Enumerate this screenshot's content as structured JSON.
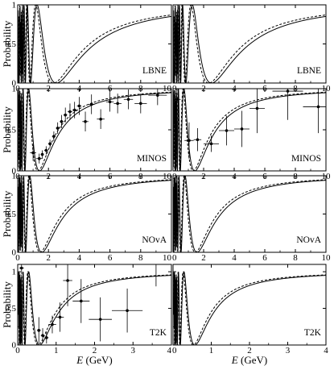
{
  "figure": {
    "ylabel": "Probability",
    "xlabel_italic": "E",
    "xlabel_unit": " (GeV)"
  },
  "chart_data": [
    {
      "type": "line",
      "experiment": "LBNE",
      "column": 0,
      "row": 0,
      "xlim": [
        0,
        10
      ],
      "ylim": [
        0,
        1.0
      ],
      "xticks": [
        0,
        2,
        4,
        6,
        8,
        10
      ],
      "yticks": [
        0,
        0.5,
        1
      ],
      "curve": {
        "L_km": 1300
      },
      "data_points": []
    },
    {
      "type": "line",
      "experiment": "LBNE",
      "column": 1,
      "row": 0,
      "xlim": [
        0,
        10
      ],
      "ylim": [
        0,
        1.0
      ],
      "xticks": [
        0,
        2,
        4,
        6,
        8,
        10
      ],
      "yticks": [
        0,
        0.5,
        1
      ],
      "curve": {
        "L_km": 1300
      },
      "data_points": []
    },
    {
      "type": "line",
      "experiment": "MINOS",
      "column": 0,
      "row": 1,
      "xlim": [
        0,
        10
      ],
      "ylim": [
        0,
        1.0
      ],
      "xticks": [
        0,
        2,
        4,
        6,
        8,
        10
      ],
      "yticks": [
        0,
        0.5,
        1
      ],
      "curve": {
        "L_km": 735
      },
      "data_points": [
        {
          "x": 1.0,
          "y": 0.22,
          "xerr": 0.2,
          "yerr": 0.1
        },
        {
          "x": 1.4,
          "y": 0.15,
          "xerr": 0.2,
          "yerr": 0.06
        },
        {
          "x": 1.6,
          "y": 0.2,
          "xerr": 0.1,
          "yerr": 0.05
        },
        {
          "x": 1.85,
          "y": 0.25,
          "xerr": 0.12,
          "yerr": 0.05
        },
        {
          "x": 2.1,
          "y": 0.33,
          "xerr": 0.12,
          "yerr": 0.05
        },
        {
          "x": 2.35,
          "y": 0.42,
          "xerr": 0.12,
          "yerr": 0.06
        },
        {
          "x": 2.6,
          "y": 0.52,
          "xerr": 0.12,
          "yerr": 0.07
        },
        {
          "x": 2.85,
          "y": 0.6,
          "xerr": 0.12,
          "yerr": 0.08
        },
        {
          "x": 3.1,
          "y": 0.68,
          "xerr": 0.12,
          "yerr": 0.09
        },
        {
          "x": 3.4,
          "y": 0.72,
          "xerr": 0.15,
          "yerr": 0.1
        },
        {
          "x": 3.7,
          "y": 0.74,
          "xerr": 0.15,
          "yerr": 0.1
        },
        {
          "x": 4.0,
          "y": 0.79,
          "xerr": 0.15,
          "yerr": 0.11
        },
        {
          "x": 4.4,
          "y": 0.6,
          "xerr": 0.2,
          "yerr": 0.12
        },
        {
          "x": 4.8,
          "y": 0.81,
          "xerr": 0.2,
          "yerr": 0.12
        },
        {
          "x": 5.4,
          "y": 0.63,
          "xerr": 0.25,
          "yerr": 0.12
        },
        {
          "x": 6.0,
          "y": 0.84,
          "xerr": 0.25,
          "yerr": 0.12
        },
        {
          "x": 6.5,
          "y": 0.82,
          "xerr": 0.25,
          "yerr": 0.12
        },
        {
          "x": 7.2,
          "y": 0.87,
          "xerr": 0.3,
          "yerr": 0.12
        },
        {
          "x": 8.0,
          "y": 0.82,
          "xerr": 0.4,
          "yerr": 0.12
        },
        {
          "x": 9.1,
          "y": 0.92,
          "xerr": 0.6,
          "yerr": 0.12
        }
      ]
    },
    {
      "type": "line",
      "experiment": "MINOS",
      "column": 1,
      "row": 1,
      "xlim": [
        0,
        10
      ],
      "ylim": [
        0,
        1.0
      ],
      "xticks": [
        0,
        2,
        4,
        6,
        8,
        10
      ],
      "yticks": [
        0,
        0.5,
        1
      ],
      "curve": {
        "L_km": 735
      },
      "data_points": [
        {
          "x": 0.25,
          "y": 0.87,
          "xerr": 0.25,
          "yerr": 0.18
        },
        {
          "x": 1.05,
          "y": 0.37,
          "xerr": 0.3,
          "yerr": 0.22
        },
        {
          "x": 1.6,
          "y": 0.38,
          "xerr": 0.25,
          "yerr": 0.14
        },
        {
          "x": 2.5,
          "y": 0.33,
          "xerr": 0.5,
          "yerr": 0.1
        },
        {
          "x": 3.5,
          "y": 0.49,
          "xerr": 0.5,
          "yerr": 0.18
        },
        {
          "x": 4.5,
          "y": 0.51,
          "xerr": 0.5,
          "yerr": 0.22
        },
        {
          "x": 5.5,
          "y": 0.76,
          "xerr": 0.5,
          "yerr": 0.3
        },
        {
          "x": 7.5,
          "y": 0.97,
          "xerr": 1.0,
          "yerr": 0.35
        },
        {
          "x": 9.5,
          "y": 0.78,
          "xerr": 1.0,
          "yerr": 0.32
        }
      ]
    },
    {
      "type": "line",
      "experiment": "NOvA",
      "column": 0,
      "row": 2,
      "xlim": [
        0,
        10
      ],
      "ylim": [
        0,
        1.0
      ],
      "xticks": [
        0,
        2,
        4,
        6,
        8,
        10
      ],
      "yticks": [
        0,
        0.5,
        1
      ],
      "curve": {
        "L_km": 810
      },
      "data_points": []
    },
    {
      "type": "line",
      "experiment": "NOvA",
      "column": 1,
      "row": 2,
      "xlim": [
        0,
        10
      ],
      "ylim": [
        0,
        1.0
      ],
      "xticks": [
        0,
        2,
        4,
        6,
        8,
        10
      ],
      "yticks": [
        0,
        0.5,
        1
      ],
      "curve": {
        "L_km": 810
      },
      "data_points": []
    },
    {
      "type": "line",
      "experiment": "T2K",
      "column": 0,
      "row": 3,
      "xlim": [
        0,
        4
      ],
      "ylim": [
        0,
        1.1
      ],
      "xticks": [
        0,
        1,
        2,
        3,
        4
      ],
      "yticks": [
        0,
        0.5,
        1
      ],
      "curve": {
        "L_km": 295
      },
      "data_points": [
        {
          "x": 0.1,
          "y": 1.05,
          "xerr": 0.06,
          "yerr": 0.08
        },
        {
          "x": 0.55,
          "y": 0.2,
          "xerr": 0.05,
          "yerr": 0.18
        },
        {
          "x": 0.65,
          "y": 0.13,
          "xerr": 0.05,
          "yerr": 0.1
        },
        {
          "x": 0.75,
          "y": 0.1,
          "xerr": 0.05,
          "yerr": 0.08
        },
        {
          "x": 0.9,
          "y": 0.28,
          "xerr": 0.1,
          "yerr": 0.12
        },
        {
          "x": 1.1,
          "y": 0.38,
          "xerr": 0.1,
          "yerr": 0.2
        },
        {
          "x": 1.3,
          "y": 0.88,
          "xerr": 0.12,
          "yerr": 0.35
        },
        {
          "x": 1.65,
          "y": 0.6,
          "xerr": 0.22,
          "yerr": 0.3
        },
        {
          "x": 2.15,
          "y": 0.35,
          "xerr": 0.3,
          "yerr": 0.3
        },
        {
          "x": 2.85,
          "y": 0.47,
          "xerr": 0.4,
          "yerr": 0.3
        },
        {
          "x": 3.6,
          "y": 1.15,
          "xerr": 0.4,
          "yerr": 0.35
        }
      ]
    },
    {
      "type": "line",
      "experiment": "T2K",
      "column": 1,
      "row": 3,
      "xlim": [
        0,
        4
      ],
      "ylim": [
        0,
        1.1
      ],
      "xticks": [
        0,
        1,
        2,
        3,
        4
      ],
      "yticks": [
        0,
        0.5,
        1
      ],
      "curve": {
        "L_km": 295
      },
      "data_points": []
    }
  ]
}
